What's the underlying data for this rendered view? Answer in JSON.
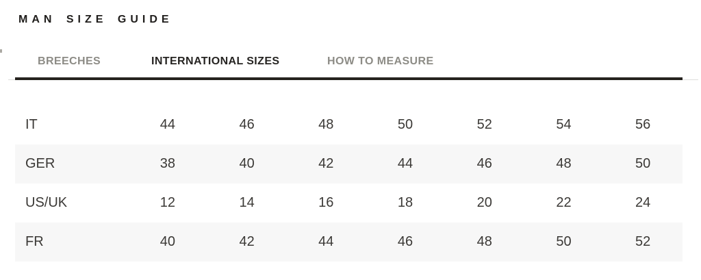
{
  "page": {
    "title": "MAN SIZE GUIDE"
  },
  "tabs": [
    {
      "label": "BREECHES",
      "active": false
    },
    {
      "label": "INTERNATIONAL SIZES",
      "active": true
    },
    {
      "label": "HOW TO MEASURE",
      "active": false
    }
  ],
  "size_table": {
    "rows": [
      {
        "label": "IT",
        "values": [
          "44",
          "46",
          "48",
          "50",
          "52",
          "54",
          "56"
        ]
      },
      {
        "label": "GER",
        "values": [
          "38",
          "40",
          "42",
          "44",
          "46",
          "48",
          "50"
        ]
      },
      {
        "label": "US/UK",
        "values": [
          "12",
          "14",
          "16",
          "18",
          "20",
          "22",
          "24"
        ]
      },
      {
        "label": "FR",
        "values": [
          "40",
          "42",
          "44",
          "46",
          "48",
          "50",
          "52"
        ]
      }
    ]
  },
  "colors": {
    "title_text": "#1f1d1b",
    "active_tab_text": "#262422",
    "inactive_tab_text": "#8d8c86",
    "thick_rule": "#26231f",
    "thin_rule": "#dddddb",
    "row_stripe": "#f7f7f7",
    "table_text": "#3b3936",
    "background": "#ffffff"
  }
}
